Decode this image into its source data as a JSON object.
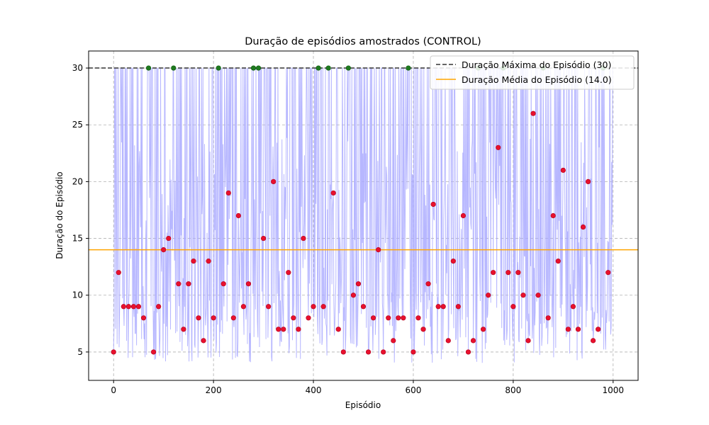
{
  "chart_data": {
    "type": "line",
    "title": "Duração de episódios amostrados (CONTROL)",
    "xlabel": "Episódio",
    "ylabel": "Duração do Episódio",
    "xlim": [
      -50,
      1050
    ],
    "ylim": [
      2.5,
      31.5
    ],
    "x_ticks": [
      0,
      200,
      400,
      600,
      800,
      1000
    ],
    "y_ticks": [
      5,
      10,
      15,
      20,
      25,
      30
    ],
    "grid": true,
    "legend_position": "top-right",
    "colors": {
      "episode_line": "#aaaaff",
      "max_line": "#333333",
      "mean_line": "#ffa500",
      "success_marker": "#1f7a1f",
      "failure_marker": "#e8112d"
    },
    "reference_lines": [
      {
        "name": "Duração Máxima do Episódio (30)",
        "y": 30,
        "style": "dashed",
        "color": "#333333"
      },
      {
        "name": "Duração Média do Episódio (14.0)",
        "y": 14.0,
        "style": "solid",
        "color": "#ffa500"
      }
    ],
    "sampled_points": {
      "x": [
        0,
        10,
        20,
        30,
        40,
        50,
        60,
        70,
        80,
        90,
        100,
        110,
        120,
        130,
        140,
        150,
        160,
        170,
        180,
        190,
        200,
        210,
        220,
        230,
        240,
        250,
        260,
        270,
        280,
        290,
        300,
        310,
        320,
        330,
        340,
        350,
        360,
        370,
        380,
        390,
        400,
        410,
        420,
        430,
        440,
        450,
        460,
        470,
        480,
        490,
        500,
        510,
        520,
        530,
        540,
        550,
        560,
        570,
        580,
        590,
        600,
        610,
        620,
        630,
        640,
        650,
        660,
        670,
        680,
        690,
        700,
        710,
        720,
        730,
        740,
        750,
        760,
        770,
        780,
        790,
        800,
        810,
        820,
        830,
        840,
        850,
        860,
        870,
        880,
        890,
        900,
        910,
        920,
        930,
        940,
        950,
        960,
        970,
        980,
        990
      ],
      "y": [
        5,
        12,
        9,
        9,
        9,
        9,
        8,
        30,
        5,
        9,
        14,
        15,
        30,
        11,
        7,
        11,
        13,
        8,
        6,
        13,
        8,
        30,
        11,
        19,
        8,
        17,
        9,
        11,
        30,
        30,
        15,
        9,
        20,
        7,
        7,
        12,
        8,
        7,
        15,
        8,
        9,
        30,
        9,
        30,
        19,
        7,
        5,
        30,
        10,
        11,
        9,
        5,
        8,
        14,
        5,
        8,
        6,
        8,
        8,
        30,
        5,
        8,
        7,
        11,
        18,
        9,
        9,
        6,
        13,
        9,
        17,
        5,
        6,
        30,
        7,
        10,
        12,
        23,
        30,
        12,
        9,
        12,
        10,
        6,
        26,
        10,
        30,
        8,
        17,
        13,
        21,
        7,
        9,
        7,
        16,
        20,
        6,
        7,
        30,
        12
      ]
    }
  }
}
